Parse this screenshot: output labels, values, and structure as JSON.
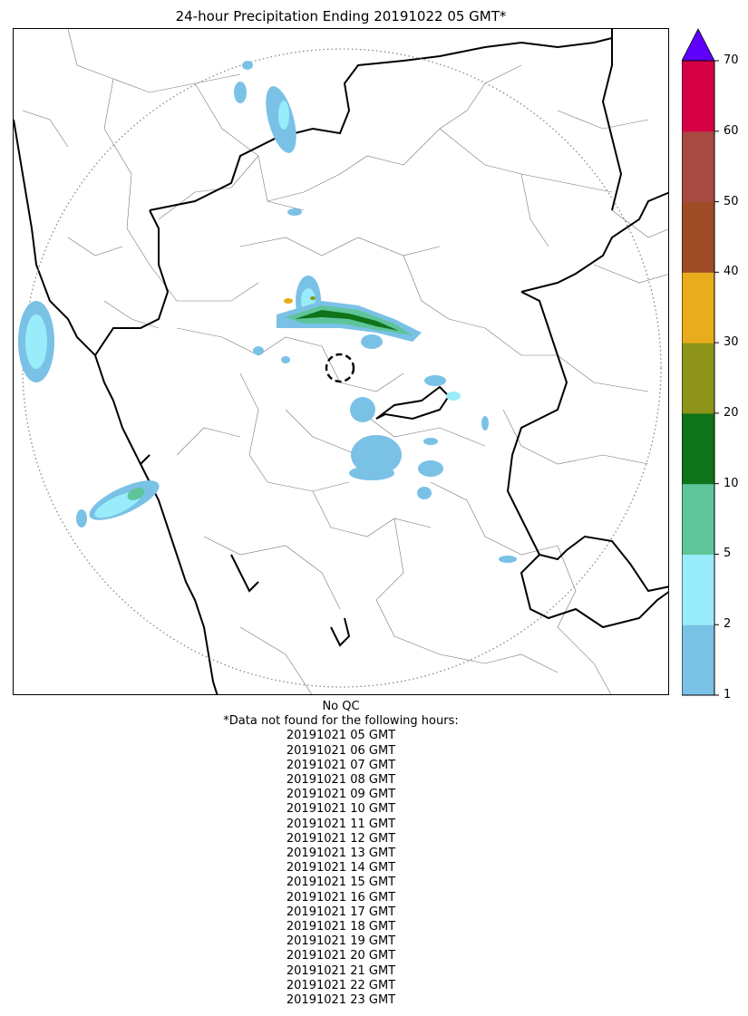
{
  "title": "24-hour Precipitation Ending 20191022 05 GMT*",
  "map": {
    "radar_range_ring": "dotted",
    "radar_site_marker": "dashed-circle"
  },
  "colorbar": {
    "ticks": [
      "1",
      "2",
      "5",
      "10",
      "20",
      "30",
      "40",
      "50",
      "60",
      "70"
    ],
    "colors": [
      "#7ac1e6",
      "#99edfb",
      "#5ec49a",
      "#0e7319",
      "#8d9419",
      "#e8ac1c",
      "#9e4d27",
      "#a74a41",
      "#d60044"
    ],
    "extend_color": "#5f00ff"
  },
  "notes": {
    "qc": "No QC",
    "missing_header": "*Data not found for the following hours:",
    "missing_hours": [
      "20191021 05 GMT",
      "20191021 06 GMT",
      "20191021 07 GMT",
      "20191021 08 GMT",
      "20191021 09 GMT",
      "20191021 10 GMT",
      "20191021 11 GMT",
      "20191021 12 GMT",
      "20191021 13 GMT",
      "20191021 14 GMT",
      "20191021 15 GMT",
      "20191021 16 GMT",
      "20191021 17 GMT",
      "20191021 18 GMT",
      "20191021 19 GMT",
      "20191021 20 GMT",
      "20191021 21 GMT",
      "20191021 22 GMT",
      "20191021 23 GMT"
    ]
  }
}
